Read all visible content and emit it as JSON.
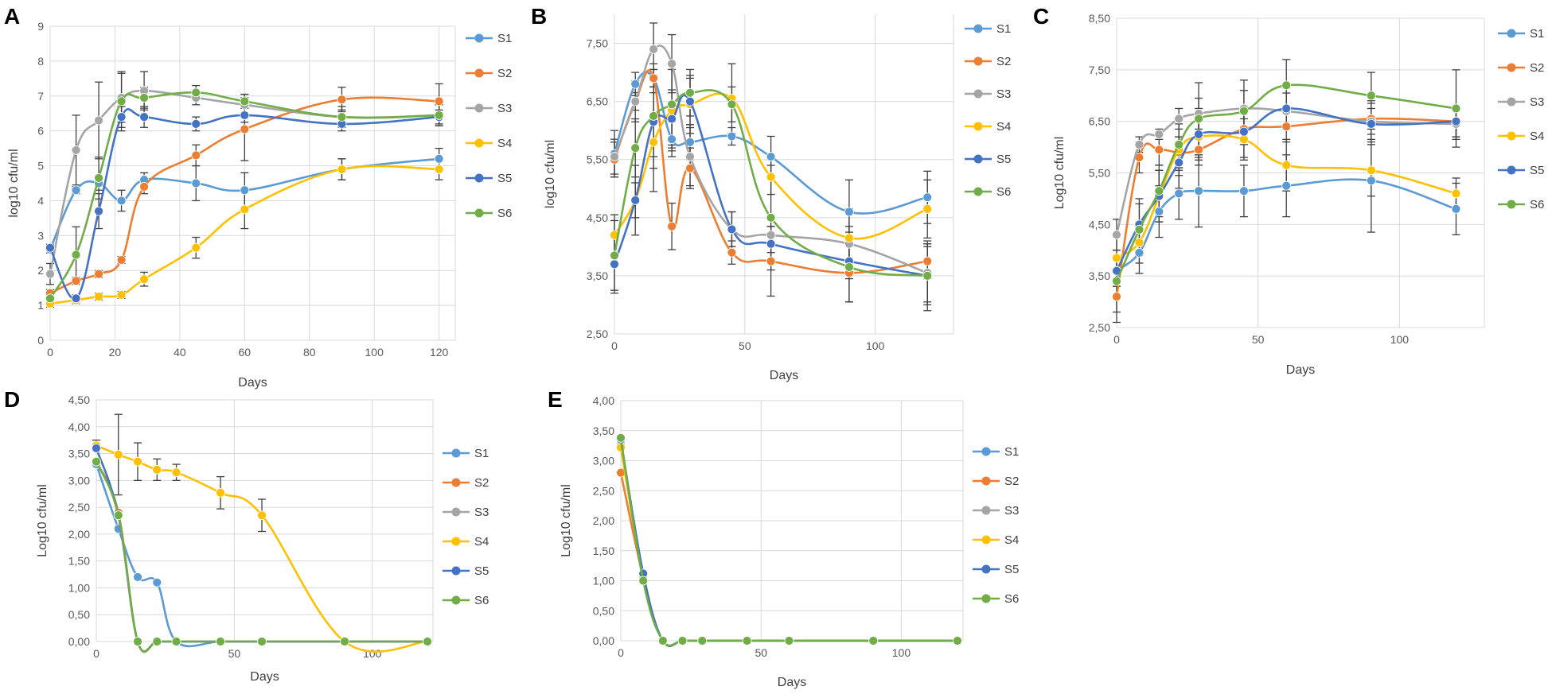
{
  "colors": {
    "S1": "#5b9bd5",
    "S2": "#ed7d31",
    "S3": "#a5a5a5",
    "S4": "#ffc000",
    "S5": "#4472c4",
    "S6": "#70ad47"
  },
  "chart_data": [
    {
      "type": "line",
      "panel": "A",
      "xlabel": "Days",
      "ylabel": "log10 cfu/ml",
      "xlim": [
        0,
        125
      ],
      "xticks": [
        "0",
        "20",
        "40",
        "60",
        "80",
        "100",
        "120"
      ],
      "xtickvals": [
        0,
        20,
        40,
        60,
        80,
        100,
        120
      ],
      "ylim": [
        0,
        9
      ],
      "yticks": [
        "0",
        "1",
        "2",
        "3",
        "4",
        "5",
        "6",
        "7",
        "8",
        "9"
      ],
      "ytickvals": [
        0,
        1,
        2,
        3,
        4,
        5,
        6,
        7,
        8,
        9
      ],
      "x": [
        0,
        8,
        15,
        22,
        29,
        45,
        60,
        90,
        120
      ],
      "series": [
        {
          "name": "S1",
          "values": [
            2.6,
            4.3,
            4.5,
            4.0,
            4.6,
            4.5,
            4.3,
            4.9,
            5.2
          ],
          "err": [
            0.1,
            0.1,
            0.2,
            0.3,
            0.2,
            0.5,
            0.5,
            0.3,
            0.3
          ]
        },
        {
          "name": "S2",
          "values": [
            1.35,
            1.7,
            1.9,
            2.3,
            4.4,
            5.3,
            6.05,
            6.9,
            6.85
          ],
          "err": [
            0.1,
            0.1,
            0.1,
            0.1,
            0.2,
            0.3,
            0.9,
            0.35,
            0.5
          ]
        },
        {
          "name": "S3",
          "values": [
            1.9,
            5.45,
            6.3,
            6.95,
            7.15,
            6.95,
            6.75,
            6.4,
            6.45
          ],
          "err": [
            0.3,
            1.0,
            1.1,
            0.7,
            0.55,
            0.2,
            0.3,
            0.3,
            0.3
          ]
        },
        {
          "name": "S4",
          "values": [
            1.05,
            1.15,
            1.25,
            1.3,
            1.75,
            2.65,
            3.75,
            4.9,
            4.9
          ],
          "err": [
            0.1,
            0.1,
            0.1,
            0.1,
            0.2,
            0.3,
            0.55,
            0.3,
            0.3
          ]
        },
        {
          "name": "S5",
          "values": [
            2.65,
            1.2,
            3.7,
            6.4,
            6.4,
            6.2,
            6.45,
            6.2,
            6.4
          ],
          "err": [
            0.1,
            0.1,
            0.5,
            0.3,
            0.3,
            0.2,
            0.2,
            0.2,
            0.2
          ]
        },
        {
          "name": "S6",
          "values": [
            1.2,
            2.45,
            4.65,
            6.85,
            6.95,
            7.1,
            6.85,
            6.4,
            6.45
          ],
          "err": [
            0.1,
            0.8,
            0.6,
            0.85,
            0.3,
            0.2,
            0.2,
            0.2,
            0.3
          ]
        }
      ]
    },
    {
      "type": "line",
      "panel": "B",
      "xlabel": "Days",
      "ylabel": "log10 cfu/ml",
      "xlim": [
        0,
        130
      ],
      "xticks": [
        "0",
        "50",
        "100"
      ],
      "xtickvals": [
        0,
        50,
        100
      ],
      "ylim": [
        2.5,
        8.0
      ],
      "yticks": [
        "2,50",
        "3,50",
        "4,50",
        "5,50",
        "6,50",
        "7,50"
      ],
      "ytickvals": [
        2.5,
        3.5,
        4.5,
        5.5,
        6.5,
        7.5
      ],
      "x": [
        0,
        8,
        15,
        22,
        29,
        45,
        60,
        90,
        120
      ],
      "series": [
        {
          "name": "S1",
          "values": [
            5.6,
            6.8,
            6.9,
            5.85,
            5.8,
            5.9,
            5.55,
            4.6,
            4.85
          ],
          "err": [
            0.4,
            0.2,
            0.15,
            0.3,
            0.3,
            0.15,
            0.35,
            0.55,
            0.45
          ]
        },
        {
          "name": "S2",
          "values": [
            5.5,
            6.5,
            6.9,
            4.35,
            5.35,
            3.9,
            3.75,
            3.55,
            3.75
          ],
          "err": [
            0.3,
            0.15,
            0.15,
            0.4,
            0.35,
            0.2,
            0.6,
            0.5,
            0.3
          ]
        },
        {
          "name": "S3",
          "values": [
            5.55,
            6.5,
            7.4,
            7.15,
            5.55,
            4.3,
            4.2,
            4.05,
            3.55
          ],
          "err": [
            0.3,
            0.35,
            0.45,
            0.5,
            0.5,
            0.3,
            0.3,
            0.3,
            0.5
          ]
        },
        {
          "name": "S4",
          "values": [
            4.2,
            4.8,
            5.8,
            6.35,
            6.45,
            6.55,
            5.2,
            4.15,
            4.65
          ],
          "err": [
            0.35,
            0.6,
            0.85,
            0.7,
            0.5,
            0.6,
            0.3,
            0.5,
            0.5
          ]
        },
        {
          "name": "S5",
          "values": [
            3.7,
            4.8,
            6.15,
            6.2,
            6.5,
            4.3,
            4.05,
            3.75,
            3.5
          ],
          "err": [
            0.5,
            0.3,
            0.6,
            0.5,
            0.4,
            0.3,
            0.3,
            0.3,
            0.5
          ]
        },
        {
          "name": "S6",
          "values": [
            3.85,
            5.7,
            6.25,
            6.45,
            6.65,
            6.45,
            4.5,
            3.65,
            3.5
          ],
          "err": [
            0.6,
            0.5,
            0.9,
            0.7,
            0.4,
            0.3,
            0.9,
            0.6,
            0.6
          ]
        }
      ]
    },
    {
      "type": "line",
      "panel": "C",
      "xlabel": "Days",
      "ylabel": "Log10 cfu/ml",
      "xlim": [
        0,
        130
      ],
      "xticks": [
        "0",
        "50",
        "100"
      ],
      "xtickvals": [
        0,
        50,
        100
      ],
      "ylim": [
        2.5,
        8.5
      ],
      "yticks": [
        "2,50",
        "3,50",
        "4,50",
        "5,50",
        "6,50",
        "7,50",
        "8,50"
      ],
      "ytickvals": [
        2.5,
        3.5,
        4.5,
        5.5,
        6.5,
        7.5,
        8.5
      ],
      "x": [
        0,
        8,
        15,
        22,
        29,
        45,
        60,
        90,
        120
      ],
      "series": [
        {
          "name": "S1",
          "values": [
            3.6,
            3.95,
            4.75,
            5.1,
            5.15,
            5.15,
            5.25,
            5.35,
            4.8
          ],
          "err": [
            0.3,
            0.4,
            0.5,
            0.5,
            0.7,
            0.5,
            0.6,
            1.0,
            0.5
          ]
        },
        {
          "name": "S2",
          "values": [
            3.1,
            5.8,
            5.95,
            5.9,
            5.95,
            6.35,
            6.4,
            6.55,
            6.5
          ],
          "err": [
            0.5,
            0.3,
            0.3,
            0.3,
            0.3,
            0.3,
            0.3,
            0.3,
            0.3
          ]
        },
        {
          "name": "S3",
          "values": [
            4.3,
            6.05,
            6.25,
            6.55,
            6.65,
            6.75,
            6.7,
            6.5,
            6.45
          ],
          "err": [
            0.3,
            0.15,
            0.1,
            0.2,
            0.3,
            0.35,
            0.35,
            0.4,
            0.3
          ]
        },
        {
          "name": "S4",
          "values": [
            3.85,
            4.15,
            5.05,
            5.95,
            6.2,
            6.15,
            5.65,
            5.55,
            5.1
          ],
          "err": [
            0.4,
            0.4,
            0.5,
            0.5,
            0.4,
            0.4,
            0.5,
            0.5,
            0.3
          ]
        },
        {
          "name": "S5",
          "values": [
            3.6,
            4.5,
            5.05,
            5.7,
            6.25,
            6.3,
            6.75,
            6.45,
            6.5
          ],
          "err": [
            0.3,
            0.5,
            0.5,
            0.5,
            0.5,
            0.5,
            0.4,
            0.3,
            0.3
          ]
        },
        {
          "name": "S6",
          "values": [
            3.4,
            4.4,
            5.15,
            6.05,
            6.55,
            6.7,
            7.2,
            7.0,
            6.75
          ],
          "err": [
            0.6,
            0.5,
            0.5,
            0.5,
            0.7,
            0.6,
            0.5,
            0.45,
            0.75
          ]
        }
      ]
    },
    {
      "type": "line",
      "panel": "D",
      "xlabel": "Days",
      "ylabel": "Log10 cfu/ml",
      "xlim": [
        0,
        122
      ],
      "xticks": [
        "0",
        "50",
        "100"
      ],
      "xtickvals": [
        0,
        50,
        100
      ],
      "ylim": [
        0,
        4.5
      ],
      "yticks": [
        "0,00",
        "0,50",
        "1,00",
        "1,50",
        "2,00",
        "2,50",
        "3,00",
        "3,50",
        "4,00",
        "4,50"
      ],
      "ytickvals": [
        0,
        0.5,
        1,
        1.5,
        2,
        2.5,
        3,
        3.5,
        4,
        4.5
      ],
      "x": [
        0,
        8,
        15,
        22,
        29,
        45,
        60,
        90,
        120
      ],
      "series": [
        {
          "name": "S1",
          "values": [
            3.3,
            2.1,
            1.2,
            1.1,
            0,
            0,
            0,
            0,
            0
          ],
          "err": [
            0,
            0,
            0,
            0,
            0,
            0,
            0,
            0,
            0
          ]
        },
        {
          "name": "S2",
          "values": [
            3.35,
            2.4,
            0,
            0,
            0,
            0,
            0,
            0,
            0
          ],
          "err": [
            0,
            0,
            0,
            0,
            0,
            0,
            0,
            0,
            0
          ]
        },
        {
          "name": "S3",
          "values": [
            3.35,
            2.35,
            0,
            0,
            0,
            0,
            0,
            0,
            0
          ],
          "err": [
            0,
            0,
            0,
            0,
            0,
            0,
            0,
            0,
            0
          ]
        },
        {
          "name": "S4",
          "values": [
            3.65,
            3.48,
            3.35,
            3.2,
            3.15,
            2.77,
            2.35,
            0,
            0
          ],
          "err": [
            0.1,
            0.75,
            0.35,
            0.2,
            0.15,
            0.3,
            0.3,
            0,
            0
          ]
        },
        {
          "name": "S5",
          "values": [
            3.6,
            2.35,
            0,
            0,
            0,
            0,
            0,
            0,
            0
          ],
          "err": [
            0,
            0,
            0,
            0,
            0,
            0,
            0,
            0,
            0
          ]
        },
        {
          "name": "S6",
          "values": [
            3.35,
            2.35,
            0,
            0,
            0,
            0,
            0,
            0,
            0
          ],
          "err": [
            0,
            0,
            0,
            0,
            0,
            0,
            0,
            0,
            0
          ]
        }
      ]
    },
    {
      "type": "line",
      "panel": "E",
      "xlabel": "Days",
      "ylabel": "Log10 cfu/ml",
      "xlim": [
        0,
        122
      ],
      "xticks": [
        "0",
        "50",
        "100"
      ],
      "xtickvals": [
        0,
        50,
        100
      ],
      "ylim": [
        0,
        4.0
      ],
      "yticks": [
        "0,00",
        "0,50",
        "1,00",
        "1,50",
        "2,00",
        "2,50",
        "3,00",
        "3,50",
        "4,00"
      ],
      "ytickvals": [
        0,
        0.5,
        1,
        1.5,
        2,
        2.5,
        3,
        3.5,
        4
      ],
      "x": [
        0,
        8,
        15,
        22,
        29,
        45,
        60,
        90,
        120
      ],
      "series": [
        {
          "name": "S1",
          "values": [
            3.3,
            1.05,
            0,
            0,
            0,
            0,
            0,
            0,
            0
          ],
          "err": [
            0,
            0,
            0,
            0,
            0,
            0,
            0,
            0,
            0
          ]
        },
        {
          "name": "S2",
          "values": [
            2.8,
            1.05,
            0,
            0,
            0,
            0,
            0,
            0,
            0
          ],
          "err": [
            0,
            0,
            0,
            0,
            0,
            0,
            0,
            0,
            0
          ]
        },
        {
          "name": "S3",
          "values": [
            3.3,
            1.05,
            0,
            0,
            0,
            0,
            0,
            0,
            0
          ],
          "err": [
            0,
            0,
            0,
            0,
            0,
            0,
            0,
            0,
            0
          ]
        },
        {
          "name": "S4",
          "values": [
            3.22,
            1.05,
            0,
            0,
            0,
            0,
            0,
            0,
            0
          ],
          "err": [
            0,
            0,
            0,
            0,
            0,
            0,
            0,
            0,
            0
          ]
        },
        {
          "name": "S5",
          "values": [
            3.35,
            1.12,
            0,
            0,
            0,
            0,
            0,
            0,
            0
          ],
          "err": [
            0,
            0,
            0,
            0,
            0,
            0,
            0,
            0,
            0
          ]
        },
        {
          "name": "S6",
          "values": [
            3.38,
            1.0,
            0,
            0,
            0,
            0,
            0,
            0,
            0
          ],
          "err": [
            0,
            0,
            0,
            0,
            0,
            0,
            0,
            0,
            0
          ]
        }
      ]
    }
  ]
}
